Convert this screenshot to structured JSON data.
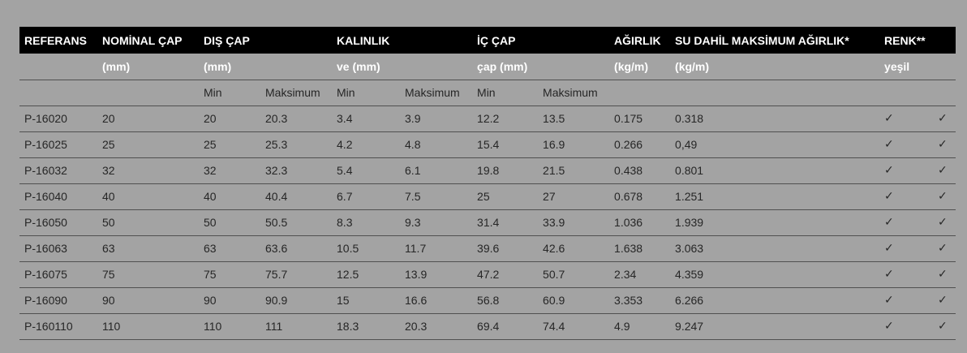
{
  "table": {
    "header": [
      "REFERANS",
      "NOMİNAL ÇAP",
      "DIŞ ÇAP",
      "KALINLIK",
      "İÇ ÇAP",
      "AĞIRLIK",
      "SU DAHİL MAKSİMUM AĞIRLIK*",
      "RENK**"
    ],
    "units": [
      "(mm)",
      "(mm)",
      "ve (mm)",
      "çap (mm)",
      "(kg/m)",
      "(kg/m)",
      "yeşil"
    ],
    "limits": [
      "Min",
      "Maksimum",
      "Min",
      "Maksimum",
      "Min",
      "Maksimum"
    ],
    "rows": [
      [
        "P-16020",
        "20",
        "20",
        "20.3",
        "3.4",
        "3.9",
        "12.2",
        "13.5",
        "0.175",
        "0.318",
        "✓",
        "✓"
      ],
      [
        "P-16025",
        "25",
        "25",
        "25.3",
        "4.2",
        "4.8",
        "15.4",
        "16.9",
        "0.266",
        "0,49",
        "✓",
        "✓"
      ],
      [
        "P-16032",
        "32",
        "32",
        "32.3",
        "5.4",
        "6.1",
        "19.8",
        "21.5",
        "0.438",
        "0.801",
        "✓",
        "✓"
      ],
      [
        "P-16040",
        "40",
        "40",
        "40.4",
        "6.7",
        "7.5",
        "25",
        "27",
        "0.678",
        "1.251",
        "✓",
        "✓"
      ],
      [
        "P-16050",
        "50",
        "50",
        "50.5",
        "8.3",
        "9.3",
        "31.4",
        "33.9",
        "1.036",
        "1.939",
        "✓",
        "✓"
      ],
      [
        "P-16063",
        "63",
        "63",
        "63.6",
        "10.5",
        "11.7",
        "39.6",
        "42.6",
        "1.638",
        "3.063",
        "✓",
        "✓"
      ],
      [
        "P-16075",
        "75",
        "75",
        "75.7",
        "12.5",
        "13.9",
        "47.2",
        "50.7",
        "2.34",
        "4.359",
        "✓",
        "✓"
      ],
      [
        "P-16090",
        "90",
        "90",
        "90.9",
        "15",
        "16.6",
        "56.8",
        "60.9",
        "3.353",
        "6.266",
        "✓",
        "✓"
      ],
      [
        "P-160110",
        "110",
        "110",
        "111",
        "18.3",
        "20.3",
        "69.4",
        "74.4",
        "4.9",
        "9.247",
        "✓",
        "✓"
      ]
    ]
  }
}
